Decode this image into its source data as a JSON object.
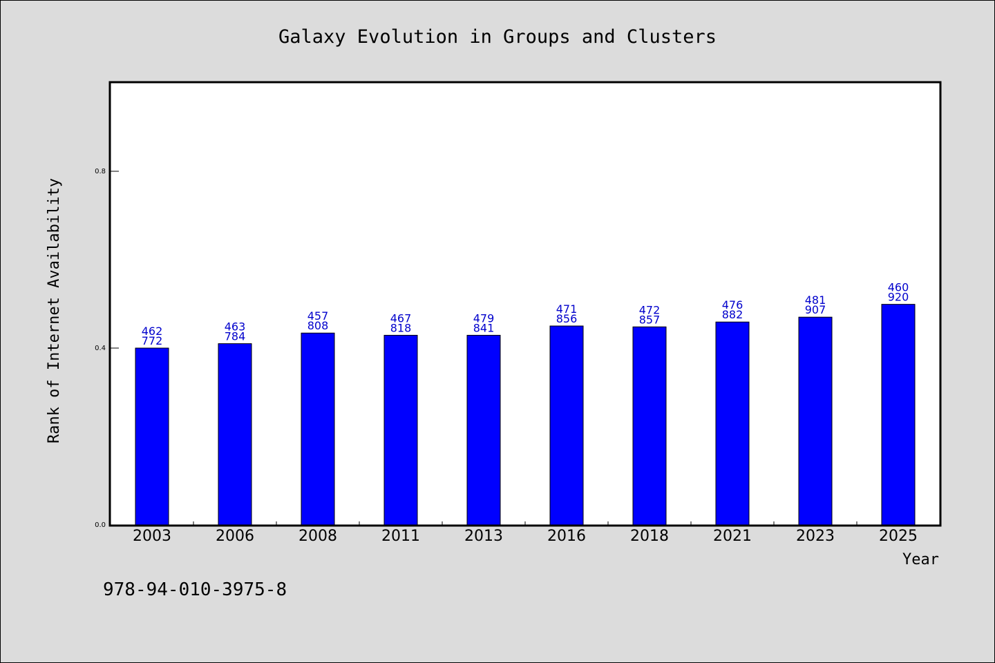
{
  "chart_data": {
    "type": "bar",
    "title": "Galaxy Evolution in Groups and Clusters",
    "xlabel": "Year",
    "ylabel": "Rank of Internet Availability",
    "categories": [
      "2003",
      "2006",
      "2008",
      "2011",
      "2013",
      "2016",
      "2018",
      "2021",
      "2023",
      "2025"
    ],
    "values": [
      0.4,
      0.41,
      0.434,
      0.429,
      0.429,
      0.45,
      0.448,
      0.459,
      0.47,
      0.499
    ],
    "data_labels": [
      [
        "462",
        "772"
      ],
      [
        "463",
        "784"
      ],
      [
        "457",
        "808"
      ],
      [
        "467",
        "818"
      ],
      [
        "479",
        "841"
      ],
      [
        "471",
        "856"
      ],
      [
        "472",
        "857"
      ],
      [
        "476",
        "882"
      ],
      [
        "481",
        "907"
      ],
      [
        "460",
        "920"
      ]
    ],
    "ylim": [
      0.0,
      1.0
    ],
    "yticks": [
      "0.0",
      "0.4",
      "0.8"
    ],
    "ytick_values": [
      0.0,
      0.4,
      0.8
    ],
    "grid": false,
    "legend": "none",
    "bar_color": "#0000ff",
    "label_color": "#0000cc",
    "plot_background": "#ffffff",
    "page_background": "#dcdcdc"
  },
  "footer_text": "978-94-010-3975-8"
}
